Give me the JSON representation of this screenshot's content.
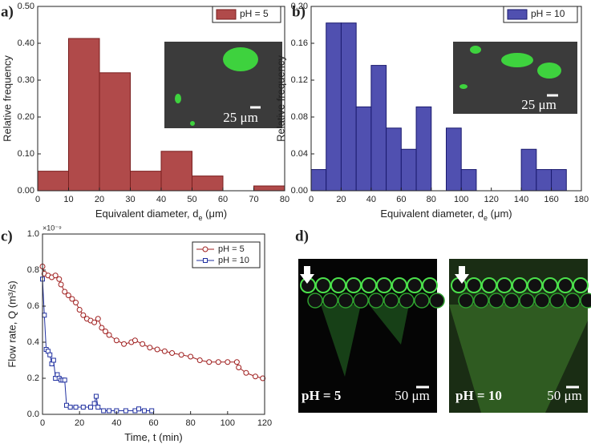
{
  "panel_labels": [
    "a)",
    "b)",
    "c)",
    "d)"
  ],
  "insets": [
    {
      "scale": "25 μm"
    },
    {
      "scale": "25 μm"
    }
  ],
  "images": [
    {
      "label": "pH = 5",
      "scale": "50 μm"
    },
    {
      "label": "pH = 10",
      "scale": "50 μm"
    }
  ],
  "chart_data": [
    {
      "type": "histogram",
      "x_label": [
        "Equivalent diameter, d",
        "e",
        " (μm)"
      ],
      "y_label": "Relative frequency",
      "bins": [
        0,
        10,
        20,
        30,
        40,
        50,
        60,
        70,
        80
      ],
      "series": [
        {
          "name": "pH = 5",
          "color": "#b04a4a",
          "edge": "#7a1f1f",
          "values": [
            0.053,
            0.413,
            0.32,
            0.053,
            0.107,
            0.04,
            0,
            0.013
          ]
        }
      ],
      "xlim": [
        0,
        80
      ],
      "xticks": [
        0,
        10,
        20,
        30,
        40,
        50,
        60,
        70,
        80
      ],
      "ylim": [
        0,
        0.5
      ],
      "yticks": [
        {
          "value": 0,
          "label": "0.00"
        },
        {
          "value": 0.1,
          "label": "0.10"
        },
        {
          "value": 0.2,
          "label": "0.20"
        },
        {
          "value": 0.3,
          "label": "0.30"
        },
        {
          "value": 0.4,
          "label": "0.40"
        },
        {
          "value": 0.5,
          "label": "0.50"
        }
      ]
    },
    {
      "type": "histogram",
      "x_label": [
        "Equivalent diameter, d",
        "e",
        " (μm)"
      ],
      "y_label": "Relative frequency",
      "bins": [
        0,
        10,
        20,
        30,
        40,
        50,
        60,
        70,
        80,
        90,
        100,
        110,
        120,
        130,
        140,
        150,
        160,
        170
      ],
      "series": [
        {
          "name": "pH = 10",
          "color": "#5050b0",
          "edge": "#1a1a6e",
          "values": [
            0.023,
            0.182,
            0.182,
            0.091,
            0.136,
            0.068,
            0.045,
            0.091,
            0,
            0.068,
            0.023,
            0,
            0,
            0,
            0.045,
            0.023,
            0.023
          ]
        }
      ],
      "xlim": [
        0,
        180
      ],
      "xticks": [
        0,
        20,
        40,
        60,
        80,
        100,
        120,
        140,
        160,
        180
      ],
      "ylim": [
        0,
        0.2
      ],
      "yticks": [
        {
          "value": 0,
          "label": "0.00"
        },
        0.04,
        0.08,
        0.12,
        0.16,
        {
          "value": 0.2,
          "label": "0.20"
        }
      ]
    },
    {
      "type": "line",
      "x_label": [
        "Time, t (min)"
      ],
      "y_label": "Flow rate, Q (m³/s)",
      "y_multiplier": "×10⁻⁹",
      "series": [
        {
          "name": "pH = 5",
          "color": "#a02020",
          "marker": "circle",
          "x": [
            0,
            1,
            3,
            5,
            7,
            9,
            10,
            12,
            14,
            16,
            18,
            20,
            22,
            24,
            26,
            28,
            30,
            32,
            34,
            36,
            40,
            44,
            48,
            50,
            54,
            58,
            62,
            66,
            70,
            75,
            80,
            85,
            90,
            95,
            100,
            105,
            106,
            110,
            115,
            119
          ],
          "values": [
            0.82,
            0.78,
            0.77,
            0.76,
            0.77,
            0.75,
            0.72,
            0.68,
            0.66,
            0.64,
            0.62,
            0.58,
            0.55,
            0.53,
            0.52,
            0.51,
            0.53,
            0.48,
            0.46,
            0.44,
            0.41,
            0.39,
            0.4,
            0.41,
            0.39,
            0.37,
            0.36,
            0.35,
            0.34,
            0.33,
            0.32,
            0.3,
            0.29,
            0.29,
            0.29,
            0.29,
            0.26,
            0.23,
            0.21,
            0.2
          ]
        },
        {
          "name": "pH = 10",
          "color": "#2030a0",
          "marker": "square",
          "x": [
            0,
            1,
            2,
            3,
            4,
            5,
            6,
            7,
            8,
            9,
            10,
            11,
            12,
            13,
            15,
            18,
            22,
            26,
            28,
            29,
            30,
            33,
            36,
            40,
            45,
            50,
            52,
            55,
            59
          ],
          "values": [
            0.75,
            0.55,
            0.36,
            0.35,
            0.33,
            0.28,
            0.3,
            0.2,
            0.22,
            0.2,
            0.19,
            0.19,
            0.19,
            0.05,
            0.04,
            0.04,
            0.04,
            0.04,
            0.06,
            0.1,
            0.04,
            0.02,
            0.02,
            0.02,
            0.02,
            0.02,
            0.03,
            0.02,
            0.02
          ]
        }
      ],
      "xlim": [
        0,
        120
      ],
      "xticks": [
        0,
        20,
        40,
        60,
        80,
        100,
        120
      ],
      "ylim": [
        0,
        1
      ],
      "yticks": [
        {
          "value": 0,
          "label": "0.0"
        },
        0.2,
        0.4,
        0.6,
        0.8,
        {
          "value": 1,
          "label": "1.0"
        }
      ]
    }
  ]
}
